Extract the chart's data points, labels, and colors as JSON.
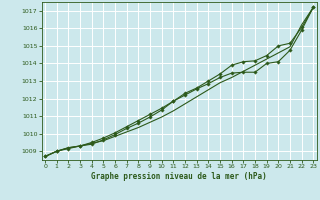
{
  "title": "Graphe pression niveau de la mer (hPa)",
  "bg_color": "#cce8ec",
  "grid_color": "#ffffff",
  "line_color": "#2d5a1b",
  "ylim": [
    1008.5,
    1017.5
  ],
  "xlim": [
    -0.3,
    23.3
  ],
  "yticks": [
    1009,
    1010,
    1011,
    1012,
    1013,
    1014,
    1015,
    1016,
    1017
  ],
  "xticks": [
    0,
    1,
    2,
    3,
    4,
    5,
    6,
    7,
    8,
    9,
    10,
    11,
    12,
    13,
    14,
    15,
    16,
    17,
    18,
    19,
    20,
    21,
    22,
    23
  ],
  "series1_x": [
    0,
    1,
    2,
    3,
    4,
    5,
    6,
    7,
    8,
    9,
    10,
    11,
    12,
    13,
    14,
    15,
    16,
    17,
    18,
    19,
    20,
    21,
    22,
    23
  ],
  "series1_y": [
    1008.7,
    1009.0,
    1009.2,
    1009.3,
    1009.45,
    1009.6,
    1009.85,
    1010.1,
    1010.35,
    1010.65,
    1010.95,
    1011.3,
    1011.7,
    1012.1,
    1012.5,
    1012.9,
    1013.2,
    1013.55,
    1013.9,
    1014.25,
    1014.6,
    1014.95,
    1016.2,
    1017.2
  ],
  "series2_x": [
    0,
    1,
    2,
    3,
    4,
    5,
    6,
    7,
    8,
    9,
    10,
    11,
    12,
    13,
    14,
    15,
    16,
    17,
    18,
    19,
    20,
    21,
    22,
    23
  ],
  "series2_y": [
    1008.7,
    1009.0,
    1009.15,
    1009.3,
    1009.5,
    1009.75,
    1010.05,
    1010.4,
    1010.75,
    1011.1,
    1011.45,
    1011.85,
    1012.2,
    1012.55,
    1012.85,
    1013.2,
    1013.45,
    1013.5,
    1013.5,
    1014.0,
    1014.1,
    1014.75,
    1015.9,
    1017.2
  ],
  "series3_x": [
    0,
    1,
    2,
    3,
    4,
    5,
    6,
    7,
    8,
    9,
    10,
    11,
    12,
    13,
    14,
    15,
    16,
    17,
    18,
    19,
    20,
    21,
    22,
    23
  ],
  "series3_y": [
    1008.7,
    1009.0,
    1009.2,
    1009.3,
    1009.4,
    1009.65,
    1009.95,
    1010.3,
    1010.6,
    1010.95,
    1011.35,
    1011.85,
    1012.3,
    1012.6,
    1013.0,
    1013.4,
    1013.9,
    1014.1,
    1014.15,
    1014.45,
    1015.0,
    1015.15,
    1016.05,
    1017.2
  ]
}
